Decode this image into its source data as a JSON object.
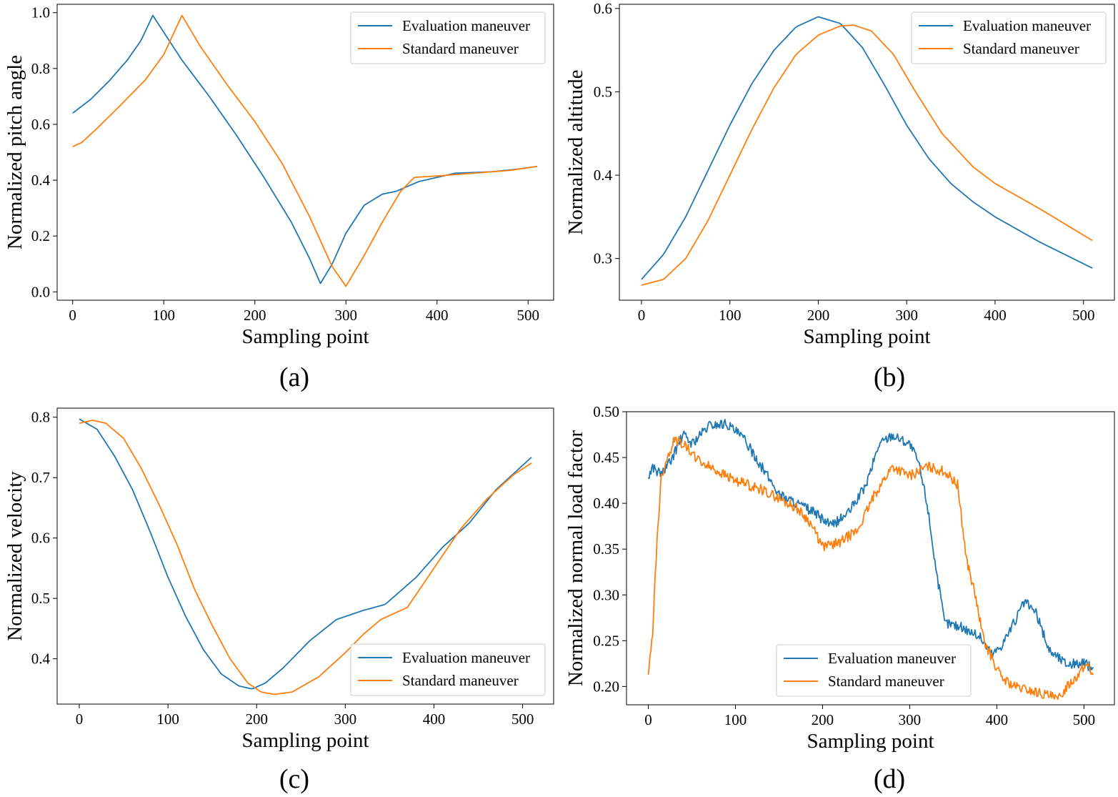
{
  "figure": {
    "panels": [
      "a",
      "b",
      "c",
      "d"
    ]
  },
  "colors": {
    "evaluation": "#1f77b4",
    "standard": "#ff7f0e"
  },
  "chart_data": [
    {
      "id": "a",
      "caption": "(a)",
      "type": "line",
      "title": "",
      "xlabel": "Sampling point",
      "ylabel": "Normalized pitch angle",
      "xlim": [
        -17,
        528
      ],
      "ylim": [
        -0.03,
        1.03
      ],
      "xticks": [
        0,
        100,
        200,
        300,
        400,
        500
      ],
      "yticks": [
        0.0,
        0.2,
        0.4,
        0.6,
        0.8,
        1.0
      ],
      "ytick_decimals": 1,
      "legend": {
        "position": "top-right"
      },
      "series": [
        {
          "name": "Evaluation maneuver",
          "color": "#1f77b4",
          "x": [
            0,
            20,
            40,
            60,
            75,
            88,
            100,
            120,
            150,
            180,
            210,
            240,
            260,
            272,
            285,
            300,
            320,
            340,
            355,
            380,
            420,
            460,
            490,
            511
          ],
          "y": [
            0.64,
            0.69,
            0.755,
            0.83,
            0.9,
            0.99,
            0.93,
            0.83,
            0.7,
            0.56,
            0.41,
            0.25,
            0.12,
            0.03,
            0.1,
            0.21,
            0.31,
            0.35,
            0.36,
            0.395,
            0.425,
            0.43,
            0.44,
            0.45
          ]
        },
        {
          "name": "Standard maneuver",
          "color": "#ff7f0e",
          "x": [
            0,
            10,
            25,
            50,
            80,
            100,
            120,
            140,
            170,
            200,
            230,
            260,
            285,
            300,
            320,
            340,
            360,
            375,
            400,
            440,
            480,
            511
          ],
          "y": [
            0.52,
            0.535,
            0.58,
            0.66,
            0.76,
            0.85,
            0.99,
            0.88,
            0.74,
            0.61,
            0.46,
            0.27,
            0.09,
            0.02,
            0.13,
            0.25,
            0.36,
            0.41,
            0.415,
            0.425,
            0.435,
            0.45
          ]
        }
      ]
    },
    {
      "id": "b",
      "caption": "(b)",
      "type": "line",
      "title": "",
      "xlabel": "Sampling point",
      "ylabel": "Normalized altitude",
      "xlim": [
        -25,
        535
      ],
      "ylim": [
        0.25,
        0.605
      ],
      "xticks": [
        0,
        100,
        200,
        300,
        400,
        500
      ],
      "yticks": [
        0.3,
        0.4,
        0.5,
        0.6
      ],
      "ytick_decimals": 1,
      "legend": {
        "position": "top-right"
      },
      "series": [
        {
          "name": "Evaluation maneuver",
          "color": "#1f77b4",
          "x": [
            0,
            25,
            50,
            75,
            100,
            125,
            150,
            175,
            200,
            225,
            250,
            275,
            300,
            325,
            350,
            375,
            400,
            450,
            511
          ],
          "y": [
            0.275,
            0.305,
            0.35,
            0.405,
            0.46,
            0.51,
            0.55,
            0.578,
            0.59,
            0.582,
            0.553,
            0.508,
            0.46,
            0.42,
            0.39,
            0.368,
            0.35,
            0.32,
            0.288
          ]
        },
        {
          "name": "Standard maneuver",
          "color": "#ff7f0e",
          "x": [
            0,
            25,
            50,
            75,
            100,
            125,
            150,
            175,
            200,
            225,
            240,
            260,
            285,
            310,
            340,
            375,
            400,
            450,
            511
          ],
          "y": [
            0.268,
            0.275,
            0.3,
            0.345,
            0.4,
            0.455,
            0.505,
            0.545,
            0.568,
            0.579,
            0.58,
            0.573,
            0.545,
            0.5,
            0.45,
            0.41,
            0.39,
            0.36,
            0.321
          ]
        }
      ]
    },
    {
      "id": "c",
      "caption": "(c)",
      "type": "line",
      "title": "",
      "xlabel": "Sampling point",
      "ylabel": "Normalized velocity",
      "xlim": [
        -25,
        535
      ],
      "ylim": [
        0.325,
        0.815
      ],
      "xticks": [
        0,
        100,
        200,
        300,
        400,
        500
      ],
      "yticks": [
        0.4,
        0.5,
        0.6,
        0.7,
        0.8
      ],
      "ytick_decimals": 1,
      "legend": {
        "position": "bottom-right"
      },
      "series": [
        {
          "name": "Evaluation maneuver",
          "color": "#1f77b4",
          "x": [
            0,
            20,
            40,
            60,
            80,
            100,
            120,
            140,
            160,
            180,
            195,
            210,
            230,
            260,
            290,
            320,
            345,
            380,
            410,
            440,
            470,
            511
          ],
          "y": [
            0.797,
            0.78,
            0.735,
            0.68,
            0.61,
            0.535,
            0.47,
            0.415,
            0.375,
            0.355,
            0.35,
            0.36,
            0.385,
            0.43,
            0.465,
            0.48,
            0.49,
            0.535,
            0.585,
            0.625,
            0.68,
            0.735
          ]
        },
        {
          "name": "Standard maneuver",
          "color": "#ff7f0e",
          "x": [
            0,
            15,
            30,
            50,
            70,
            90,
            110,
            130,
            150,
            170,
            190,
            205,
            220,
            240,
            270,
            300,
            320,
            340,
            370,
            400,
            430,
            460,
            490,
            511
          ],
          "y": [
            0.79,
            0.795,
            0.79,
            0.765,
            0.715,
            0.655,
            0.59,
            0.515,
            0.455,
            0.4,
            0.36,
            0.345,
            0.341,
            0.345,
            0.37,
            0.41,
            0.44,
            0.465,
            0.485,
            0.55,
            0.615,
            0.665,
            0.705,
            0.725
          ]
        }
      ]
    },
    {
      "id": "d",
      "caption": "(d)",
      "type": "line",
      "title": "",
      "xlabel": "Sampling point",
      "ylabel": "Normalized normal load factor",
      "xlim": [
        -25,
        535
      ],
      "ylim": [
        0.18,
        0.5
      ],
      "xticks": [
        0,
        100,
        200,
        300,
        400,
        500
      ],
      "yticks": [
        0.2,
        0.25,
        0.3,
        0.35,
        0.4,
        0.45,
        0.5
      ],
      "ytick_decimals": 2,
      "legend": {
        "position": "bottom-center"
      },
      "series": [
        {
          "name": "Evaluation maneuver",
          "color": "#1f77b4",
          "x": [
            0,
            5,
            10,
            15,
            25,
            40,
            50,
            60,
            70,
            90,
            110,
            130,
            150,
            170,
            190,
            210,
            230,
            250,
            265,
            280,
            300,
            310,
            320,
            330,
            340,
            360,
            380,
            395,
            405,
            420,
            432,
            445,
            460,
            480,
            500,
            511
          ],
          "y": [
            0.428,
            0.44,
            0.435,
            0.432,
            0.445,
            0.475,
            0.465,
            0.475,
            0.485,
            0.487,
            0.47,
            0.44,
            0.41,
            0.4,
            0.39,
            0.375,
            0.39,
            0.42,
            0.465,
            0.475,
            0.465,
            0.445,
            0.4,
            0.33,
            0.27,
            0.265,
            0.255,
            0.235,
            0.245,
            0.27,
            0.293,
            0.28,
            0.24,
            0.225,
            0.225,
            0.22
          ]
        },
        {
          "name": "Standard maneuver",
          "color": "#ff7f0e",
          "x": [
            0,
            5,
            10,
            15,
            20,
            30,
            40,
            60,
            80,
            100,
            130,
            150,
            170,
            185,
            200,
            220,
            240,
            260,
            280,
            300,
            320,
            340,
            355,
            365,
            375,
            385,
            395,
            405,
            420,
            440,
            460,
            470,
            480,
            500,
            505,
            511
          ],
          "y": [
            0.21,
            0.26,
            0.36,
            0.43,
            0.445,
            0.47,
            0.465,
            0.445,
            0.435,
            0.425,
            0.415,
            0.405,
            0.395,
            0.38,
            0.352,
            0.358,
            0.37,
            0.41,
            0.44,
            0.43,
            0.44,
            0.435,
            0.42,
            0.34,
            0.3,
            0.25,
            0.23,
            0.21,
            0.2,
            0.195,
            0.19,
            0.185,
            0.2,
            0.22,
            0.225,
            0.21
          ]
        }
      ]
    }
  ]
}
